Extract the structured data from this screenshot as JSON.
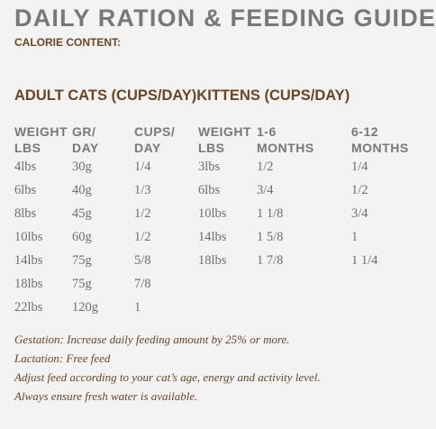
{
  "header": {
    "title": "DAILY RATION & FEEDING GUIDE",
    "calorie_label": "CALORIE CONTENT:"
  },
  "section_title": "ADULT CATS (CUPS/DAY)KITTENS (CUPS/DAY)",
  "adult_table": {
    "columns": [
      [
        "WEIGHT",
        "LBS"
      ],
      [
        "GR/",
        "DAY"
      ],
      [
        "CUPS/",
        "DAY"
      ]
    ],
    "rows": [
      [
        "4lbs",
        "30g",
        "1/4"
      ],
      [
        "6lbs",
        "40g",
        "1/3"
      ],
      [
        "8lbs",
        "45g",
        "1/2"
      ],
      [
        "10lbs",
        "60g",
        "1/2"
      ],
      [
        "14lbs",
        "75g",
        "5/8"
      ],
      [
        "18lbs",
        "75g",
        "7/8"
      ],
      [
        "22lbs",
        "120g",
        "1"
      ]
    ]
  },
  "kitten_table": {
    "columns": [
      [
        "WEIGHT",
        "LBS"
      ],
      [
        "1-6",
        "MONTHS"
      ],
      [
        "6-12",
        "MONTHS"
      ]
    ],
    "rows": [
      [
        "3lbs",
        "1/2",
        "1/4"
      ],
      [
        "6lbs",
        "3/4",
        "1/2"
      ],
      [
        "10lbs",
        "1 1/8",
        "3/4"
      ],
      [
        "14lbs",
        "1 5/8",
        "1"
      ],
      [
        "18lbs",
        "1 7/8",
        "1 1/4"
      ]
    ]
  },
  "notes": [
    "Gestation: Increase daily feeding amount by 25% or more.",
    "Lactation: Free feed",
    "Adjust feed according to your cat’s age, energy and activity level.",
    "Always ensure fresh water is available."
  ]
}
